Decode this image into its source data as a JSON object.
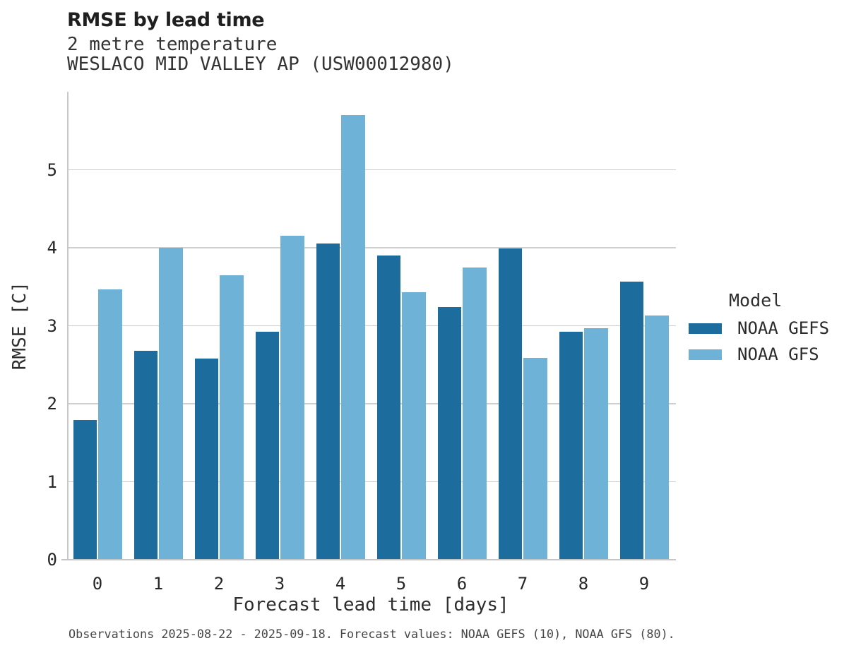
{
  "header": {
    "title": "RMSE by lead time",
    "subtitle_variable": "2 metre temperature",
    "subtitle_station": "WESLACO MID VALLEY AP (USW00012980)"
  },
  "chart_data": {
    "type": "bar",
    "title": "RMSE by lead time",
    "subtitle": [
      "2 metre temperature",
      "WESLACO MID VALLEY AP (USW00012980)"
    ],
    "categories": [
      "0",
      "1",
      "2",
      "3",
      "4",
      "5",
      "6",
      "7",
      "8",
      "9"
    ],
    "series": [
      {
        "name": "NOAA GEFS",
        "color": "#1C6D9E",
        "values": [
          1.79,
          2.68,
          2.58,
          2.92,
          4.05,
          3.9,
          3.24,
          3.99,
          2.92,
          3.57
        ]
      },
      {
        "name": "NOAA GFS",
        "color": "#6EB2D8",
        "values": [
          3.47,
          4.0,
          3.65,
          4.15,
          5.7,
          3.43,
          3.75,
          2.59,
          2.97,
          3.13
        ]
      }
    ],
    "xlabel": "Forecast lead time [days]",
    "ylabel": "RMSE [C]",
    "ylim": [
      0,
      6
    ],
    "yticks": [
      0,
      1,
      2,
      3,
      4,
      5
    ],
    "legend_title": "Model",
    "legend_position": "right",
    "grid": "horizontal",
    "gridline_color": "#cfcfcf"
  },
  "footer": {
    "note": "Observations 2025-08-22 - 2025-09-18. Forecast values: NOAA GEFS (10), NOAA GFS (80)."
  }
}
